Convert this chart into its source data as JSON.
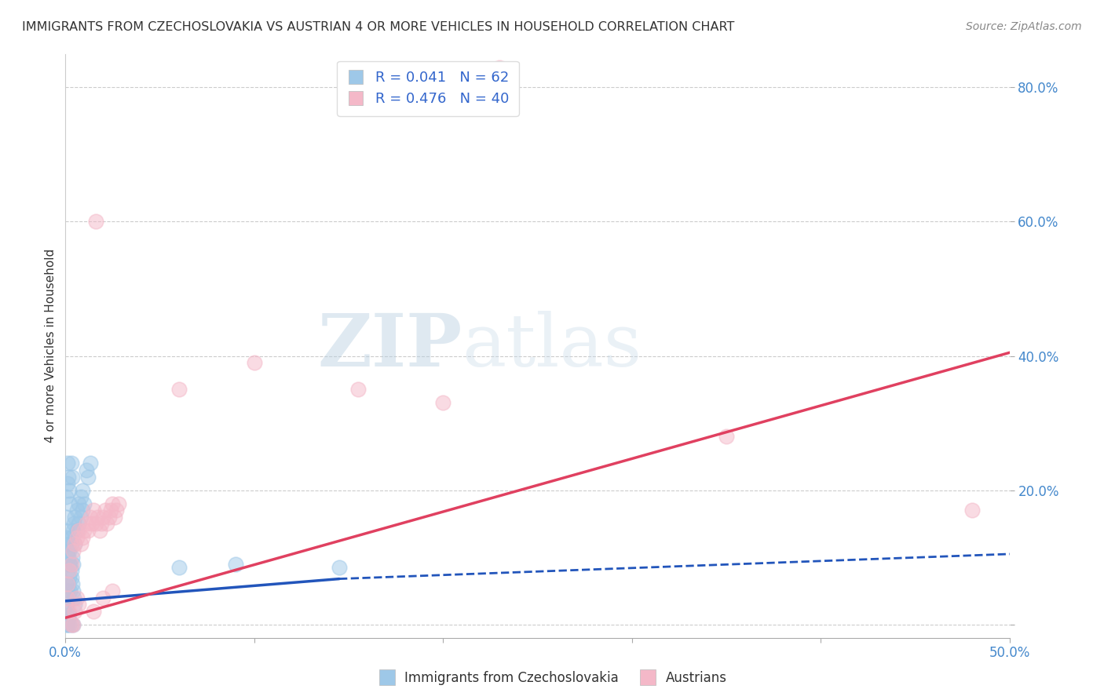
{
  "title": "IMMIGRANTS FROM CZECHOSLOVAKIA VS AUSTRIAN 4 OR MORE VEHICLES IN HOUSEHOLD CORRELATION CHART",
  "source": "Source: ZipAtlas.com",
  "ylabel": "4 or more Vehicles in Household",
  "xlim": [
    0.0,
    0.5
  ],
  "ylim": [
    -0.02,
    0.85
  ],
  "color_blue": "#9ec8e8",
  "color_pink": "#f4b8c8",
  "line_blue": "#2255bb",
  "line_pink": "#e04060",
  "watermark_zip": "ZIP",
  "watermark_atlas": "atlas",
  "blue_scatter": [
    [
      0.0005,
      0.005
    ],
    [
      0.001,
      0.01
    ],
    [
      0.0015,
      0.008
    ],
    [
      0.001,
      0.02
    ],
    [
      0.0008,
      0.03
    ],
    [
      0.002,
      0.015
    ],
    [
      0.0012,
      0.04
    ],
    [
      0.001,
      0.05
    ],
    [
      0.0015,
      0.06
    ],
    [
      0.002,
      0.07
    ],
    [
      0.0025,
      0.05
    ],
    [
      0.003,
      0.08
    ],
    [
      0.002,
      0.09
    ],
    [
      0.0015,
      0.1
    ],
    [
      0.001,
      0.11
    ],
    [
      0.003,
      0.12
    ],
    [
      0.0035,
      0.1
    ],
    [
      0.004,
      0.09
    ],
    [
      0.003,
      0.13
    ],
    [
      0.004,
      0.14
    ],
    [
      0.005,
      0.12
    ],
    [
      0.0045,
      0.15
    ],
    [
      0.005,
      0.16
    ],
    [
      0.006,
      0.14
    ],
    [
      0.006,
      0.17
    ],
    [
      0.007,
      0.15
    ],
    [
      0.007,
      0.18
    ],
    [
      0.008,
      0.16
    ],
    [
      0.008,
      0.19
    ],
    [
      0.009,
      0.17
    ],
    [
      0.009,
      0.2
    ],
    [
      0.01,
      0.18
    ],
    [
      0.0005,
      0.19
    ],
    [
      0.001,
      0.21
    ],
    [
      0.0015,
      0.22
    ],
    [
      0.002,
      0.2
    ],
    [
      0.0025,
      0.18
    ],
    [
      0.003,
      0.24
    ],
    [
      0.0035,
      0.22
    ],
    [
      0.001,
      0.24
    ],
    [
      0.0008,
      0.16
    ],
    [
      0.0005,
      0.14
    ],
    [
      0.001,
      0.13
    ],
    [
      0.0015,
      0.12
    ],
    [
      0.002,
      0.11
    ],
    [
      0.0025,
      0.09
    ],
    [
      0.003,
      0.07
    ],
    [
      0.0035,
      0.06
    ],
    [
      0.004,
      0.05
    ],
    [
      0.0045,
      0.04
    ],
    [
      0.005,
      0.03
    ],
    [
      0.002,
      0.0
    ],
    [
      0.003,
      0.0
    ],
    [
      0.004,
      0.0
    ],
    [
      0.0008,
      0.0
    ],
    [
      0.001,
      0.0
    ],
    [
      0.011,
      0.23
    ],
    [
      0.012,
      0.22
    ],
    [
      0.013,
      0.24
    ],
    [
      0.06,
      0.085
    ],
    [
      0.09,
      0.09
    ],
    [
      0.145,
      0.085
    ]
  ],
  "pink_scatter": [
    [
      0.001,
      0.06
    ],
    [
      0.002,
      0.08
    ],
    [
      0.003,
      0.09
    ],
    [
      0.004,
      0.11
    ],
    [
      0.005,
      0.12
    ],
    [
      0.006,
      0.13
    ],
    [
      0.007,
      0.14
    ],
    [
      0.008,
      0.12
    ],
    [
      0.009,
      0.13
    ],
    [
      0.01,
      0.14
    ],
    [
      0.011,
      0.15
    ],
    [
      0.012,
      0.14
    ],
    [
      0.013,
      0.16
    ],
    [
      0.014,
      0.15
    ],
    [
      0.015,
      0.17
    ],
    [
      0.016,
      0.15
    ],
    [
      0.017,
      0.16
    ],
    [
      0.018,
      0.14
    ],
    [
      0.019,
      0.15
    ],
    [
      0.02,
      0.16
    ],
    [
      0.021,
      0.17
    ],
    [
      0.022,
      0.15
    ],
    [
      0.023,
      0.16
    ],
    [
      0.024,
      0.17
    ],
    [
      0.025,
      0.18
    ],
    [
      0.026,
      0.16
    ],
    [
      0.027,
      0.17
    ],
    [
      0.028,
      0.18
    ],
    [
      0.001,
      0.04
    ],
    [
      0.002,
      0.02
    ],
    [
      0.003,
      0.0
    ],
    [
      0.004,
      0.0
    ],
    [
      0.005,
      0.02
    ],
    [
      0.006,
      0.04
    ],
    [
      0.007,
      0.03
    ],
    [
      0.015,
      0.02
    ],
    [
      0.02,
      0.04
    ],
    [
      0.025,
      0.05
    ],
    [
      0.06,
      0.35
    ],
    [
      0.1,
      0.39
    ],
    [
      0.155,
      0.35
    ],
    [
      0.2,
      0.33
    ],
    [
      0.23,
      0.83
    ],
    [
      0.35,
      0.28
    ],
    [
      0.48,
      0.17
    ],
    [
      0.016,
      0.6
    ]
  ],
  "blue_line_x0": 0.0,
  "blue_line_x_solid_end": 0.145,
  "blue_line_x1": 0.5,
  "blue_line_y0": 0.035,
  "blue_line_y_solid_end": 0.068,
  "blue_line_y1": 0.105,
  "pink_line_x0": 0.0,
  "pink_line_x1": 0.5,
  "pink_line_y0": 0.01,
  "pink_line_y1": 0.405
}
